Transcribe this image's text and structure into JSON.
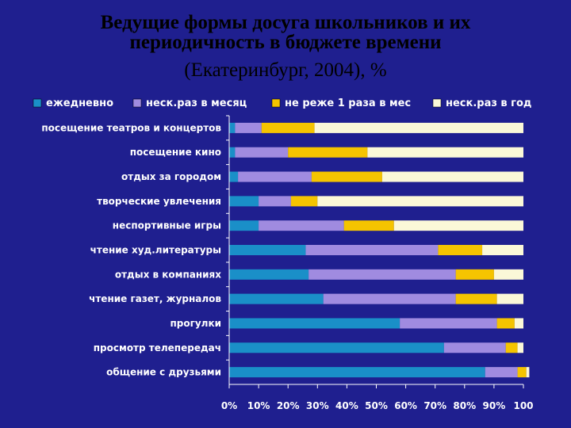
{
  "title": {
    "line1": "Ведущие формы досуга школьников и их",
    "line2": "периодичность в бюджете времени",
    "line3": "(Екатеринбург, 2004), %"
  },
  "colors": {
    "background": "#1f1f8f",
    "plot_background": "#2b2b99",
    "axis": "#ffffff"
  },
  "chart_data": {
    "type": "bar",
    "orientation": "horizontal",
    "stacked": true,
    "categories": [
      "посещение театров и концертов",
      "посещение кино",
      "отдых за городом",
      "творческие увлечения",
      "неспортивные игры",
      "чтение худ.литературы",
      "отдых в компаниях",
      "чтение газет, журналов",
      "прогулки",
      "просмотр телепередач",
      "общение с друзьями"
    ],
    "series": [
      {
        "name": "ежедневно",
        "color": "#1a8fc8",
        "values": [
          2,
          2,
          3,
          10,
          10,
          26,
          27,
          32,
          58,
          73,
          87
        ]
      },
      {
        "name": "неск.раз в месяц",
        "color": "#a08be0",
        "values": [
          9,
          18,
          25,
          11,
          29,
          45,
          50,
          45,
          33,
          21,
          11
        ]
      },
      {
        "name": "не реже 1 раза в мес",
        "color": "#f5c400",
        "values": [
          18,
          27,
          24,
          9,
          17,
          15,
          13,
          14,
          6,
          4,
          3
        ]
      },
      {
        "name": "неск.раз в год",
        "color": "#fbf8d8",
        "values": [
          71,
          53,
          48,
          70,
          44,
          14,
          10,
          9,
          3,
          2,
          1
        ]
      }
    ],
    "xlim": [
      0,
      100
    ],
    "xticks": [
      "0%",
      "10%",
      "20%",
      "30%",
      "40%",
      "50%",
      "60%",
      "70%",
      "80%",
      "90%",
      "100"
    ],
    "legend_position": "top",
    "grid": false
  }
}
